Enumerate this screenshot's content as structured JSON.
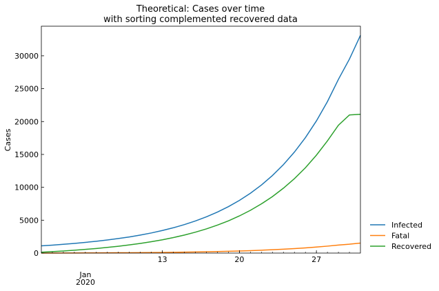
{
  "chart_data": {
    "type": "line",
    "title_line1": "Theoretical: Cases over time",
    "title_line2": "with sorting complemented recovered data",
    "xlabel": "",
    "ylabel": "Cases",
    "x_start": "2020-01-02",
    "x_end": "2020-01-31",
    "xlim_days": [
      0,
      29
    ],
    "x_ticks": [
      {
        "day": 11,
        "label": "13"
      },
      {
        "day": 18,
        "label": "20"
      },
      {
        "day": 25,
        "label": "27"
      }
    ],
    "x_month_label": "Jan",
    "x_year_label": "2020",
    "ylim": [
      0,
      34500
    ],
    "y_ticks": [
      0,
      5000,
      10000,
      15000,
      20000,
      25000,
      30000
    ],
    "grid": false,
    "legend_position": "outside-right",
    "series": [
      {
        "name": "Infected",
        "color": "#1f77b4",
        "values": [
          1100,
          1210,
          1335,
          1470,
          1625,
          1795,
          1990,
          2210,
          2455,
          2740,
          3060,
          3430,
          3850,
          4330,
          4880,
          5510,
          6230,
          7060,
          8010,
          9100,
          10350,
          11790,
          13450,
          15360,
          17560,
          20100,
          23030,
          26420,
          29500,
          33100
        ]
      },
      {
        "name": "Fatal",
        "color": "#ff7f0e",
        "values": [
          0,
          5,
          10,
          16,
          22,
          29,
          37,
          46,
          56,
          68,
          82,
          98,
          117,
          139,
          165,
          195,
          230,
          271,
          318,
          372,
          434,
          505,
          587,
          681,
          789,
          913,
          1055,
          1217,
          1350,
          1520
        ]
      },
      {
        "name": "Recovered",
        "color": "#2ca02c",
        "values": [
          130,
          220,
          320,
          430,
          560,
          700,
          860,
          1040,
          1240,
          1470,
          1730,
          2020,
          2360,
          2740,
          3180,
          3680,
          4250,
          4900,
          5650,
          6500,
          7480,
          8590,
          9870,
          11320,
          12980,
          14890,
          17060,
          19440,
          21000,
          21100
        ]
      }
    ]
  }
}
